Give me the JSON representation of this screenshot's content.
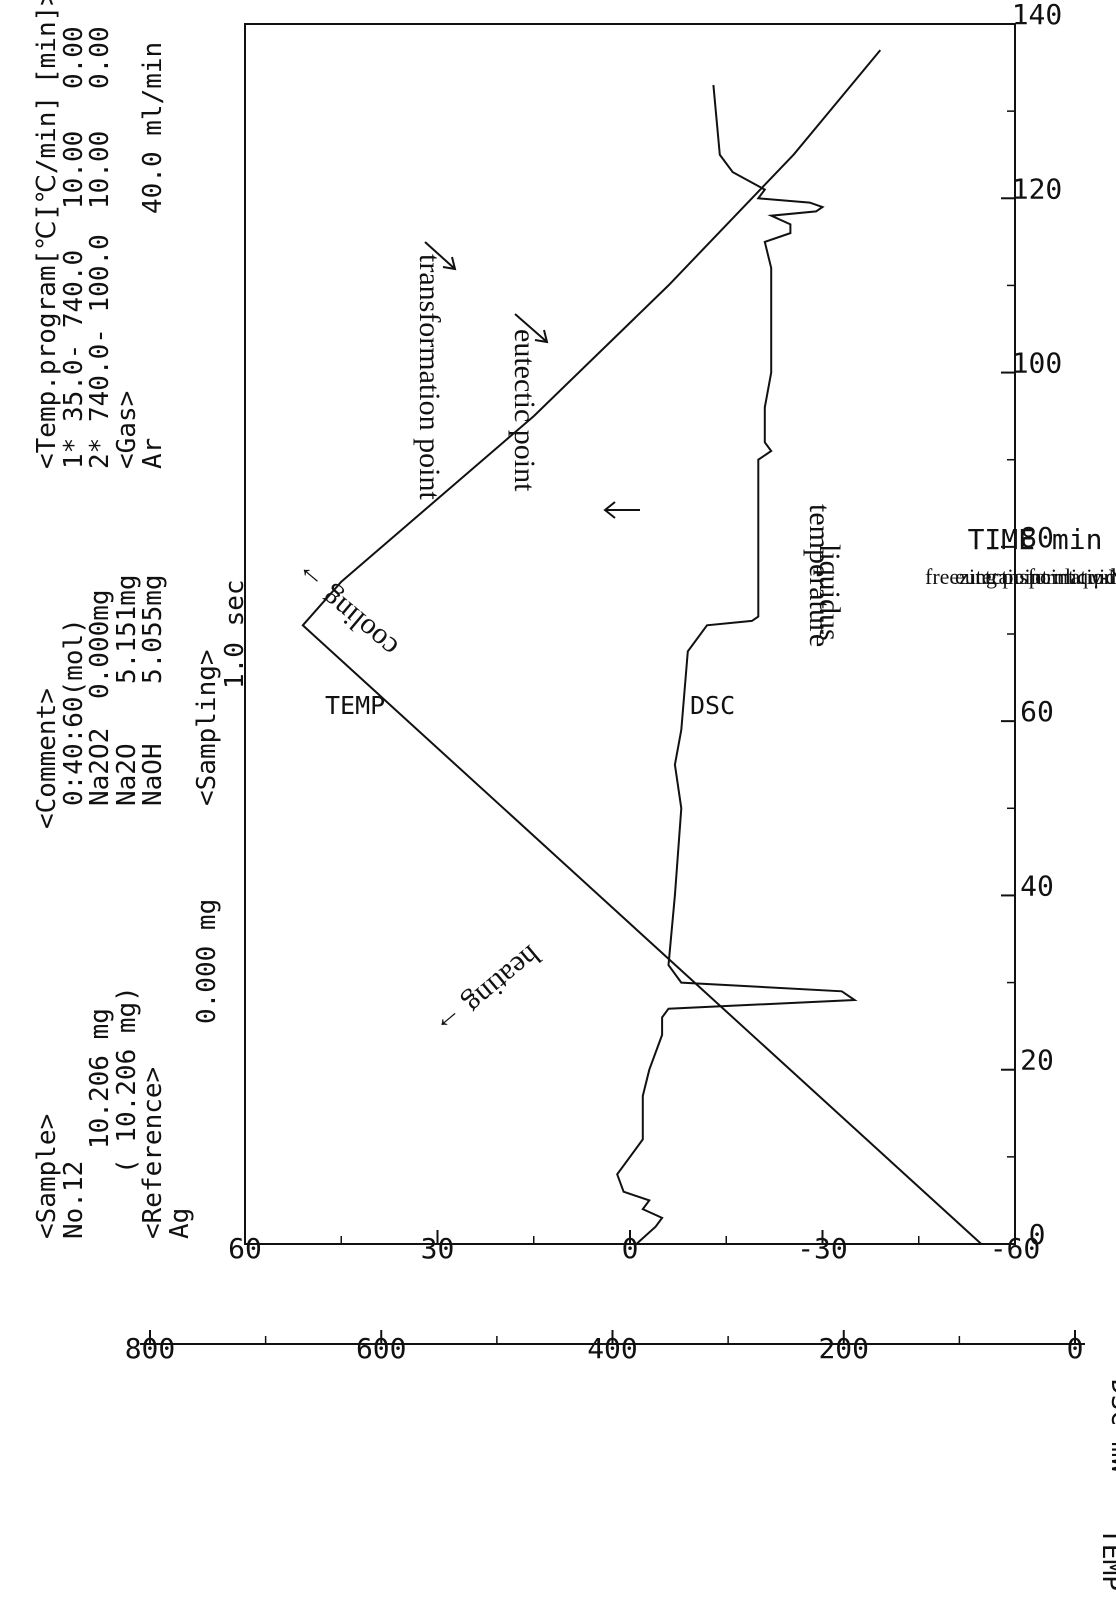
{
  "header": {
    "sample": {
      "tag": "<Sample>",
      "name": "No.12",
      "mass": "10.206 mg",
      "mass2": "( 10.206 mg)",
      "ref_tag": "<Reference>",
      "ref_name": "Ag",
      "ref_mass": "0.000 mg"
    },
    "comment": {
      "tag": "<Comment>",
      "ratio": "0:40:60(mol)",
      "lines": [
        {
          "name": "Na2O2",
          "mass": "0.000mg"
        },
        {
          "name": "Na2O",
          "mass": "5.151mg"
        },
        {
          "name": "NaOH",
          "mass": "5.055mg"
        }
      ],
      "sampling_tag": "<Sampling>",
      "sampling": "1.0 sec"
    },
    "program": {
      "tag": "<Temp.program[℃]",
      "rate_head": "[℃/min]",
      "time_head": "[min]>",
      "steps": [
        {
          "range": "1*  35.0- 740.0",
          "rate": "10.00",
          "time": "0.00"
        },
        {
          "range": "2* 740.0- 100.0",
          "rate": "10.00",
          "time": "0.00"
        }
      ],
      "gas_tag": "<Gas>",
      "gas": "Ar",
      "flow": "40.0 ml/min"
    }
  },
  "labels": {
    "temp_axis": "TEMP ℃",
    "dsc_axis": "DSC mW",
    "time_axis": "TIME min",
    "temp_curve": "TEMP",
    "dsc_curve": "DSC",
    "heating": "heating →",
    "cooling": "cooling →",
    "liquidus1": "liquidus",
    "liquidus2": "temperature",
    "eutectic": "eutectic point",
    "transformation": "transformation point",
    "legend": [
      "freezing point :  liquid → γ-Na₂O(s) + liquid",
      "eutectic point : γ-Na₂O(s) + liquid → γ-Na₂O(s) + β-NaOH(s)",
      "transformation point : α → β phase transformation (NaOH)"
    ]
  },
  "chart_data": {
    "type": "line",
    "x_range": [
      0,
      140
    ],
    "x_ticks": [
      0,
      20,
      40,
      60,
      80,
      100,
      120,
      140
    ],
    "dsc_range": [
      -60,
      60
    ],
    "dsc_ticks": [
      -60,
      -30,
      0,
      30,
      60
    ],
    "temp_range": [
      0,
      800
    ],
    "temp_ticks": [
      0,
      200,
      400,
      600,
      800
    ],
    "grid": false,
    "series": [
      {
        "name": "TEMP",
        "axis": "temp",
        "points": [
          [
            0,
            35
          ],
          [
            71,
            740
          ],
          [
            76,
            700
          ],
          [
            95,
            500
          ],
          [
            110,
            360
          ],
          [
            125,
            230
          ],
          [
            137,
            140
          ]
        ]
      },
      {
        "name": "DSC",
        "axis": "dsc",
        "points": [
          [
            0,
            -1
          ],
          [
            2,
            -4
          ],
          [
            3,
            -5
          ],
          [
            4,
            -2
          ],
          [
            5,
            -3
          ],
          [
            6,
            1
          ],
          [
            8,
            2
          ],
          [
            12,
            -2
          ],
          [
            17,
            -2
          ],
          [
            20,
            -3
          ],
          [
            24,
            -5
          ],
          [
            26,
            -5
          ],
          [
            27,
            -6
          ],
          [
            28,
            -35
          ],
          [
            29,
            -33
          ],
          [
            30,
            -8
          ],
          [
            32,
            -6
          ],
          [
            40,
            -7
          ],
          [
            50,
            -8
          ],
          [
            55,
            -7
          ],
          [
            59,
            -8
          ],
          [
            68,
            -9
          ],
          [
            71,
            -12
          ],
          [
            71.5,
            -19
          ],
          [
            72,
            -20
          ],
          [
            88,
            -20
          ],
          [
            90,
            -20
          ],
          [
            91,
            -22
          ],
          [
            92,
            -21
          ],
          [
            96,
            -21
          ],
          [
            100,
            -22
          ],
          [
            112,
            -22
          ],
          [
            115,
            -21
          ],
          [
            116,
            -25
          ],
          [
            117,
            -25
          ],
          [
            118,
            -22
          ],
          [
            118.5,
            -29
          ],
          [
            119,
            -30
          ],
          [
            119.5,
            -28
          ],
          [
            120,
            -20
          ],
          [
            121,
            -21
          ],
          [
            123,
            -16
          ],
          [
            125,
            -14
          ],
          [
            133,
            -13
          ]
        ]
      }
    ],
    "annotations": [
      "heating",
      "cooling",
      "liquidus temperature",
      "eutectic point",
      "transformation point"
    ]
  }
}
